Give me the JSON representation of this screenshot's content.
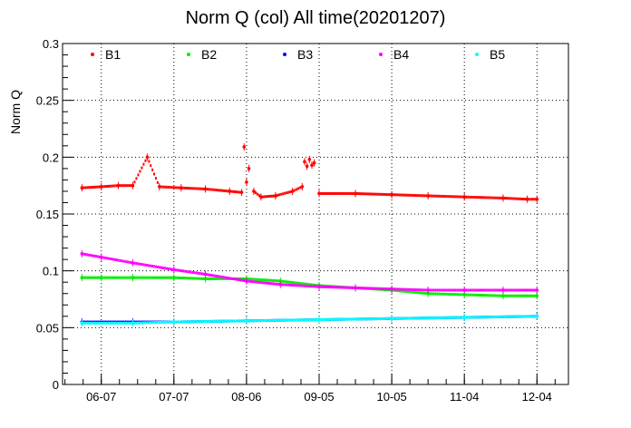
{
  "chart_data": {
    "type": "scatter",
    "title": "Norm Q (col) All time(20201207)",
    "ylabel": "Norm Q",
    "xlabel": "",
    "xlim": [
      "2020-05-22",
      "2020-12-17"
    ],
    "ylim": [
      0,
      0.3
    ],
    "grid": true,
    "legend_position": "top",
    "x_ticks": [
      "06-07",
      "07-07",
      "08-06",
      "09-05",
      "10-05",
      "11-04",
      "12-04"
    ],
    "x_tick_dates": [
      "2020-06-07",
      "2020-07-07",
      "2020-08-06",
      "2020-09-05",
      "2020-10-05",
      "2020-11-04",
      "2020-12-04"
    ],
    "y_ticks": [
      "0",
      "0.05",
      "0.1",
      "0.15",
      "0.2",
      "0.25",
      "0.3"
    ],
    "series": [
      {
        "name": "B1",
        "color": "#ff0000",
        "points": [
          [
            "2020-05-30",
            0.173
          ],
          [
            "2020-06-07",
            0.174
          ],
          [
            "2020-06-14",
            0.175
          ],
          [
            "2020-06-20",
            0.175
          ],
          [
            "2020-06-26",
            0.2
          ],
          [
            "2020-07-01",
            0.174
          ],
          [
            "2020-07-10",
            0.173
          ],
          [
            "2020-07-20",
            0.172
          ],
          [
            "2020-07-30",
            0.17
          ],
          [
            "2020-08-04",
            0.169
          ],
          [
            "2020-08-05",
            0.209
          ],
          [
            "2020-08-06",
            0.178
          ],
          [
            "2020-08-07",
            0.19
          ],
          [
            "2020-08-09",
            0.17
          ],
          [
            "2020-08-12",
            0.165
          ],
          [
            "2020-08-18",
            0.166
          ],
          [
            "2020-08-25",
            0.17
          ],
          [
            "2020-08-29",
            0.174
          ],
          [
            "2020-08-30",
            0.196
          ],
          [
            "2020-08-31",
            0.192
          ],
          [
            "2020-09-01",
            0.198
          ],
          [
            "2020-09-02",
            0.193
          ],
          [
            "2020-09-03",
            0.195
          ],
          [
            "2020-09-05",
            0.168
          ],
          [
            "2020-09-20",
            0.168
          ],
          [
            "2020-10-05",
            0.167
          ],
          [
            "2020-10-20",
            0.166
          ],
          [
            "2020-11-04",
            0.165
          ],
          [
            "2020-11-20",
            0.164
          ],
          [
            "2020-11-30",
            0.163
          ],
          [
            "2020-12-04",
            0.163
          ]
        ]
      },
      {
        "name": "B2",
        "color": "#00ee00",
        "points": [
          [
            "2020-05-30",
            0.094
          ],
          [
            "2020-06-07",
            0.094
          ],
          [
            "2020-06-20",
            0.094
          ],
          [
            "2020-07-07",
            0.094
          ],
          [
            "2020-07-20",
            0.093
          ],
          [
            "2020-08-06",
            0.093
          ],
          [
            "2020-08-20",
            0.091
          ],
          [
            "2020-09-05",
            0.087
          ],
          [
            "2020-09-20",
            0.085
          ],
          [
            "2020-10-05",
            0.083
          ],
          [
            "2020-10-20",
            0.08
          ],
          [
            "2020-11-04",
            0.079
          ],
          [
            "2020-11-20",
            0.078
          ],
          [
            "2020-12-04",
            0.078
          ]
        ]
      },
      {
        "name": "B3",
        "color": "#0000ff",
        "points": [
          [
            "2020-05-30",
            0.055
          ],
          [
            "2020-06-20",
            0.055
          ],
          [
            "2020-07-07",
            0.055
          ],
          [
            "2020-08-06",
            0.056
          ],
          [
            "2020-09-05",
            0.057
          ],
          [
            "2020-10-05",
            0.058
          ],
          [
            "2020-11-04",
            0.059
          ],
          [
            "2020-12-04",
            0.06
          ]
        ]
      },
      {
        "name": "B4",
        "color": "#ff00ff",
        "points": [
          [
            "2020-05-30",
            0.115
          ],
          [
            "2020-06-07",
            0.112
          ],
          [
            "2020-06-20",
            0.107
          ],
          [
            "2020-07-07",
            0.101
          ],
          [
            "2020-07-20",
            0.097
          ],
          [
            "2020-08-06",
            0.091
          ],
          [
            "2020-08-20",
            0.088
          ],
          [
            "2020-09-05",
            0.086
          ],
          [
            "2020-09-20",
            0.085
          ],
          [
            "2020-10-05",
            0.084
          ],
          [
            "2020-10-20",
            0.083
          ],
          [
            "2020-11-04",
            0.083
          ],
          [
            "2020-11-20",
            0.083
          ],
          [
            "2020-12-04",
            0.083
          ]
        ]
      },
      {
        "name": "B5",
        "color": "#00ffff",
        "points": [
          [
            "2020-05-30",
            0.054
          ],
          [
            "2020-06-20",
            0.054
          ],
          [
            "2020-07-07",
            0.055
          ],
          [
            "2020-08-06",
            0.056
          ],
          [
            "2020-09-05",
            0.057
          ],
          [
            "2020-10-05",
            0.058
          ],
          [
            "2020-11-04",
            0.059
          ],
          [
            "2020-12-04",
            0.06
          ]
        ]
      }
    ]
  }
}
